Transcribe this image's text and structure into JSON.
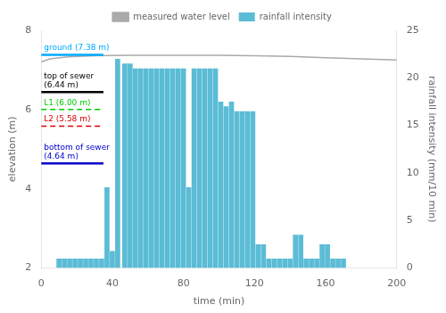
{
  "chart_data": {
    "type": "bar",
    "xlabel": "time (min)",
    "ylabel": "elevation (m)",
    "y2label": "rainfall intensity (mm/10 min)",
    "xlim": [
      0,
      200
    ],
    "xticks": [
      0,
      40,
      80,
      120,
      160,
      200
    ],
    "ylim": [
      2,
      8
    ],
    "yticks": [
      2,
      4,
      6,
      8
    ],
    "y2lim": [
      0,
      25
    ],
    "y2ticks": [
      0,
      5,
      10,
      15,
      20,
      25
    ],
    "grid": false,
    "legend": "top",
    "series": [
      {
        "name": "rainfall intensity",
        "type": "bar",
        "color": "#5bbcd6",
        "axis": "y2",
        "x": [
          10,
          13,
          16,
          19,
          22,
          25,
          28,
          31,
          34,
          37,
          40,
          43,
          47,
          50,
          53,
          56,
          59,
          62,
          65,
          68,
          71,
          74,
          77,
          80,
          83,
          86,
          89,
          92,
          95,
          98,
          101,
          104,
          107,
          110,
          113,
          116,
          119,
          122,
          125,
          128,
          131,
          134,
          137,
          140,
          143,
          146,
          149,
          152,
          155,
          158,
          161,
          164,
          167,
          170
        ],
        "values": [
          1.0,
          1.0,
          1.0,
          1.0,
          1.0,
          1.0,
          1.0,
          1.0,
          1.0,
          8.5,
          1.8,
          22.0,
          21.5,
          21.5,
          21.0,
          21.0,
          21.0,
          21.0,
          21.0,
          21.0,
          21.0,
          21.0,
          21.0,
          21.0,
          8.5,
          21.0,
          21.0,
          21.0,
          21.0,
          21.0,
          17.5,
          17.0,
          17.5,
          16.5,
          16.5,
          16.5,
          16.5,
          2.5,
          2.5,
          1.0,
          1.0,
          1.0,
          1.0,
          1.0,
          3.5,
          3.5,
          1.0,
          1.0,
          1.0,
          2.5,
          2.5,
          1.0,
          1.0,
          1.0
        ]
      },
      {
        "name": "measured water level",
        "type": "line",
        "color": "#aaaaaa",
        "marker": "none",
        "x": [
          0,
          5,
          15,
          30,
          50,
          80,
          100,
          120,
          140,
          160,
          180,
          200
        ],
        "values": [
          7.2,
          7.28,
          7.33,
          7.36,
          7.37,
          7.37,
          7.37,
          7.36,
          7.34,
          7.31,
          7.28,
          7.25
        ]
      }
    ],
    "annotations": [
      {
        "text": "ground (7.38 m)",
        "y": 7.38,
        "x": [
          0,
          35
        ],
        "color": "#00aaff",
        "line_style": "solid"
      },
      {
        "text": "top of sewer\n(6.44 m)",
        "y": 6.44,
        "x": [
          0,
          35
        ],
        "color": "#000000",
        "line_style": "solid"
      },
      {
        "text": "L1 (6.00 m)",
        "y": 6.0,
        "x": [
          0,
          35
        ],
        "color": "#00cc00",
        "line_style": "dashed"
      },
      {
        "text": "L2 (5.58 m)",
        "y": 5.58,
        "x": [
          0,
          35
        ],
        "color": "#dd0000",
        "line_style": "dashed"
      },
      {
        "text": "bottom of sewer\n(4.64 m)",
        "y": 4.64,
        "x": [
          0,
          35
        ],
        "color": "#0000cc",
        "line_style": "solid"
      }
    ]
  }
}
